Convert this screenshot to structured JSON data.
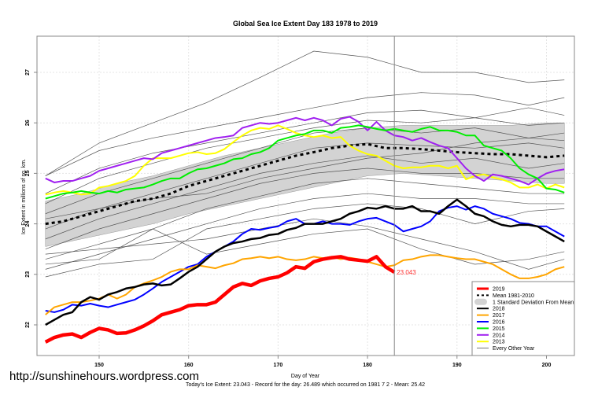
{
  "watermark": "http://sunshinehours.wordpress.com",
  "chart_data": {
    "type": "line",
    "title": "Global Sea Ice Extent Day 183 1978 to 2019",
    "xlabel": "Day of Year",
    "ylabel": "Ice Extent in millions of sq. km.",
    "subtitle": "Today's Ice Extent: 23.043  - Record for the day: 26.489 which occurred on 1981 7 2  - Mean: 25.42",
    "xlim": [
      143,
      203
    ],
    "ylim": [
      21.4,
      27.7
    ],
    "xticks": [
      150,
      160,
      170,
      180,
      190,
      200
    ],
    "yticks": [
      22,
      23,
      24,
      25,
      26,
      27
    ],
    "grid": true,
    "legend_position": "bottom-right",
    "current_day": 183,
    "current_value_label": "23.043",
    "legend": [
      {
        "label": "2019",
        "color": "#ff0000",
        "style": "thick"
      },
      {
        "label": "Mean 1981-2010",
        "color": "#000000",
        "style": "dashed"
      },
      {
        "label": "1 Standard Deviation From Mean",
        "color": "#d3d3d3",
        "style": "band"
      },
      {
        "label": "2018",
        "color": "#000000",
        "style": "solid"
      },
      {
        "label": "2017",
        "color": "#ffa500",
        "style": "solid"
      },
      {
        "label": "2016",
        "color": "#0000ff",
        "style": "solid"
      },
      {
        "label": "2015",
        "color": "#00ee00",
        "style": "solid"
      },
      {
        "label": "2014",
        "color": "#a020f0",
        "style": "solid"
      },
      {
        "label": "2013",
        "color": "#ffff00",
        "style": "solid"
      },
      {
        "label": "Every Other Year",
        "color": "#555555",
        "style": "thin"
      }
    ],
    "sd_band": {
      "x": [
        144,
        148,
        152,
        156,
        160,
        164,
        168,
        172,
        176,
        180,
        184,
        188,
        192,
        196,
        200,
        202
      ],
      "lower": [
        23.55,
        23.7,
        23.85,
        24.0,
        24.2,
        24.35,
        24.5,
        24.65,
        24.8,
        24.95,
        25.0,
        24.95,
        24.9,
        24.85,
        24.8,
        24.8
      ],
      "upper": [
        24.45,
        24.6,
        24.8,
        24.95,
        25.15,
        25.35,
        25.5,
        25.65,
        25.8,
        25.9,
        25.95,
        25.95,
        25.95,
        25.95,
        26.0,
        26.0
      ]
    },
    "mean": {
      "x": [
        144,
        146,
        148,
        150,
        152,
        154,
        156,
        158,
        160,
        162,
        164,
        166,
        168,
        170,
        172,
        174,
        176,
        178,
        180,
        182,
        184,
        186,
        188,
        190,
        192,
        194,
        196,
        198,
        200,
        202
      ],
      "y": [
        24.0,
        24.05,
        24.15,
        24.25,
        24.35,
        24.45,
        24.5,
        24.6,
        24.75,
        24.85,
        24.95,
        25.05,
        25.15,
        25.25,
        25.35,
        25.42,
        25.5,
        25.55,
        25.58,
        25.5,
        25.5,
        25.48,
        25.45,
        25.42,
        25.4,
        25.38,
        25.38,
        25.35,
        25.32,
        25.35
      ]
    },
    "series": [
      {
        "name": "2019",
        "color": "#ff0000",
        "width": 4.5,
        "x_start": 144,
        "values": [
          21.66,
          21.75,
          21.8,
          21.82,
          21.75,
          21.85,
          21.93,
          21.9,
          21.83,
          21.84,
          21.9,
          21.98,
          22.08,
          22.2,
          22.25,
          22.3,
          22.38,
          22.4,
          22.4,
          22.45,
          22.6,
          22.75,
          22.82,
          22.78,
          22.87,
          22.92,
          22.95,
          23.03,
          23.15,
          23.12,
          23.25,
          23.3,
          23.33,
          23.35,
          23.3,
          23.28,
          23.26,
          23.35,
          23.15,
          23.043
        ]
      },
      {
        "name": "2018",
        "color": "#000000",
        "width": 2.5,
        "x_start": 144,
        "values": [
          22.0,
          22.1,
          22.2,
          22.25,
          22.45,
          22.55,
          22.5,
          22.6,
          22.65,
          22.72,
          22.75,
          22.8,
          22.82,
          22.78,
          22.8,
          22.92,
          23.05,
          23.15,
          23.3,
          23.45,
          23.55,
          23.62,
          23.65,
          23.7,
          23.72,
          23.78,
          23.8,
          23.88,
          23.92,
          24.0,
          24.0,
          24.0,
          24.05,
          24.1,
          24.2,
          24.25,
          24.32,
          24.3,
          24.35,
          24.3,
          24.3,
          24.35,
          24.25,
          24.25,
          24.2,
          24.35,
          24.48,
          24.35,
          24.2,
          24.15,
          24.05,
          23.98,
          23.95,
          23.98,
          23.98,
          23.95,
          23.85,
          23.75,
          23.65
        ]
      },
      {
        "name": "2017",
        "color": "#ffa500",
        "width": 2,
        "x_start": 144,
        "values": [
          22.2,
          22.35,
          22.4,
          22.45,
          22.45,
          22.48,
          22.52,
          22.6,
          22.52,
          22.6,
          22.75,
          22.82,
          22.88,
          22.95,
          23.05,
          23.1,
          23.1,
          23.18,
          23.15,
          23.12,
          23.18,
          23.22,
          23.3,
          23.32,
          23.35,
          23.32,
          23.35,
          23.3,
          23.28,
          23.3,
          23.35,
          23.32,
          23.35,
          23.3,
          23.33,
          23.3,
          23.25,
          23.2,
          23.15,
          23.18,
          23.28,
          23.3,
          23.35,
          23.38,
          23.38,
          23.35,
          23.32,
          23.3,
          23.3,
          23.25,
          23.2,
          23.1,
          23.0,
          22.92,
          22.92,
          22.95,
          23.0,
          23.1,
          23.15
        ]
      },
      {
        "name": "2016",
        "color": "#0000ff",
        "width": 2,
        "x_start": 144,
        "values": [
          22.28,
          22.25,
          22.3,
          22.4,
          22.38,
          22.42,
          22.38,
          22.35,
          22.4,
          22.45,
          22.5,
          22.6,
          22.72,
          22.85,
          22.95,
          23.05,
          23.15,
          23.2,
          23.35,
          23.45,
          23.55,
          23.65,
          23.8,
          23.9,
          23.88,
          23.92,
          23.95,
          24.05,
          24.1,
          24.0,
          24.0,
          24.05,
          24.0,
          24.0,
          23.98,
          24.05,
          24.1,
          24.12,
          24.05,
          23.98,
          23.85,
          23.9,
          23.95,
          24.05,
          24.25,
          24.32,
          24.35,
          24.28,
          24.35,
          24.3,
          24.2,
          24.15,
          24.1,
          24.02,
          24.0,
          23.95,
          23.95,
          23.85,
          23.75
        ]
      },
      {
        "name": "2015",
        "color": "#00ee00",
        "width": 2,
        "x_start": 144,
        "values": [
          24.5,
          24.55,
          24.6,
          24.62,
          24.65,
          24.62,
          24.6,
          24.65,
          24.62,
          24.68,
          24.7,
          24.72,
          24.78,
          24.85,
          24.9,
          24.9,
          25.0,
          25.08,
          25.1,
          25.15,
          25.2,
          25.28,
          25.3,
          25.38,
          25.42,
          25.5,
          25.65,
          25.7,
          25.75,
          25.78,
          25.85,
          25.85,
          25.8,
          25.9,
          25.92,
          25.95,
          25.92,
          25.88,
          25.85,
          25.88,
          25.85,
          25.82,
          25.88,
          25.92,
          25.85,
          25.85,
          25.82,
          25.75,
          25.75,
          25.55,
          25.5,
          25.45,
          25.3,
          25.1,
          24.98,
          24.9,
          24.7,
          24.68,
          24.62
        ]
      },
      {
        "name": "2014",
        "color": "#a020f0",
        "width": 2,
        "x_start": 144,
        "values": [
          24.9,
          24.82,
          24.85,
          24.85,
          24.9,
          24.95,
          25.05,
          25.1,
          25.15,
          25.2,
          25.25,
          25.3,
          25.28,
          25.4,
          25.45,
          25.5,
          25.55,
          25.6,
          25.65,
          25.7,
          25.72,
          25.75,
          25.9,
          25.95,
          26.0,
          25.98,
          26.0,
          26.05,
          26.1,
          26.05,
          26.1,
          26.05,
          25.95,
          26.08,
          26.12,
          26.02,
          25.85,
          26.02,
          25.85,
          25.75,
          25.72,
          25.65,
          25.7,
          25.62,
          25.55,
          25.5,
          25.3,
          25.1,
          24.95,
          24.85,
          24.98,
          24.95,
          24.9,
          24.85,
          24.78,
          24.9,
          25.0,
          25.05,
          25.08
        ]
      },
      {
        "name": "2013",
        "color": "#ffff00",
        "width": 2,
        "x_start": 144,
        "values": [
          24.58,
          24.62,
          24.65,
          24.62,
          24.58,
          24.6,
          24.72,
          24.75,
          24.8,
          24.85,
          24.95,
          25.15,
          25.3,
          25.3,
          25.3,
          25.35,
          25.4,
          25.42,
          25.38,
          25.4,
          25.48,
          25.62,
          25.75,
          25.85,
          25.9,
          25.88,
          25.95,
          25.88,
          25.8,
          25.75,
          25.72,
          25.75,
          25.7,
          25.72,
          25.55,
          25.45,
          25.38,
          25.35,
          25.25,
          25.15,
          25.1,
          25.12,
          25.12,
          25.15,
          25.15,
          25.1,
          25.15,
          24.88,
          24.95,
          24.98,
          24.92,
          24.88,
          24.82,
          24.72,
          24.72,
          24.78,
          24.7,
          24.78,
          24.72
        ]
      }
    ],
    "other_years": {
      "x": [
        144,
        150,
        156,
        162,
        168,
        174,
        180,
        186,
        192,
        198,
        202
      ],
      "lines": [
        [
          24.95,
          25.6,
          26.0,
          26.4,
          26.9,
          27.42,
          27.3,
          27.0,
          27.0,
          26.8,
          26.85
        ],
        [
          24.95,
          25.45,
          25.7,
          25.9,
          26.1,
          26.3,
          26.5,
          26.6,
          26.55,
          26.35,
          26.5
        ],
        [
          24.6,
          25.1,
          25.4,
          25.6,
          25.8,
          26.0,
          26.2,
          26.25,
          26.1,
          26.3,
          26.15
        ],
        [
          24.4,
          24.9,
          25.2,
          25.5,
          25.7,
          25.9,
          26.05,
          26.0,
          26.1,
          25.95,
          26.0
        ],
        [
          24.2,
          24.6,
          24.9,
          25.2,
          25.5,
          25.8,
          25.9,
          25.8,
          25.9,
          25.7,
          25.8
        ],
        [
          23.9,
          24.3,
          24.6,
          24.9,
          25.2,
          25.5,
          25.6,
          25.55,
          25.5,
          25.6,
          25.5
        ],
        [
          23.7,
          24.1,
          24.4,
          24.7,
          25.0,
          25.2,
          25.35,
          25.2,
          25.3,
          25.1,
          25.2
        ],
        [
          23.5,
          23.9,
          24.2,
          24.5,
          24.8,
          25.0,
          25.1,
          25.0,
          25.0,
          24.9,
          24.9
        ],
        [
          23.3,
          23.6,
          23.9,
          24.3,
          24.55,
          24.8,
          24.9,
          24.8,
          24.7,
          24.6,
          24.6
        ],
        [
          23.1,
          23.4,
          23.7,
          24.0,
          24.3,
          24.5,
          24.6,
          24.5,
          24.5,
          24.4,
          24.4
        ],
        [
          22.95,
          23.2,
          23.3,
          23.9,
          24.1,
          24.3,
          24.4,
          24.3,
          24.0,
          24.25,
          24.3
        ],
        [
          23.4,
          23.5,
          23.6,
          23.7,
          23.9,
          24.1,
          23.95,
          23.7,
          23.45,
          23.1,
          23.3
        ],
        [
          23.2,
          23.3,
          23.9,
          23.4,
          23.6,
          23.8,
          23.9,
          23.5,
          23.2,
          23.3,
          23.45
        ],
        [
          24.1,
          24.3,
          24.5,
          24.6,
          24.9,
          25.1,
          25.3,
          25.4,
          25.6,
          25.7,
          25.65
        ]
      ]
    }
  }
}
